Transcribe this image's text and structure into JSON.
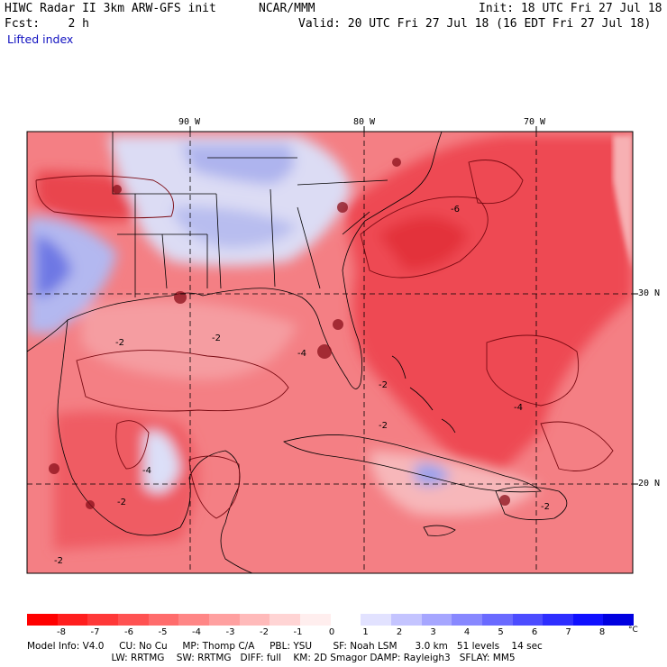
{
  "header": {
    "model_title": "HIWC Radar II 3km ARW-GFS init",
    "org": "NCAR/MMM",
    "init": "Init: 18 UTC Fri 27 Jul 18",
    "forecast": "Fcst:    2 h",
    "valid": "Valid: 20 UTC Fri 27 Jul 18 (16 EDT Fri 27 Jul 18)",
    "field": "Lifted index"
  },
  "map": {
    "lon_labels": [
      "90 W",
      "80 W",
      "70 W"
    ],
    "lat_labels": [
      "30 N",
      "20 N"
    ],
    "contour_labels": [
      "-2",
      "-2",
      "-4",
      "-2",
      "-6",
      "-2",
      "-4",
      "-2",
      "-4",
      "-2",
      "-2"
    ],
    "colors": {
      "neg_strong": "#e8303a",
      "neg_mid": "#f06a70",
      "neg_light": "#f7a6aa",
      "neutral": "#fbe4e6",
      "pos_light": "#c9cdf3",
      "pos_mid": "#8f98ec",
      "grid": "#000000"
    }
  },
  "colorbar": {
    "ticks": [
      "-8",
      "-7",
      "-6",
      "-5",
      "-4",
      "-3",
      "-2",
      "-1",
      "0",
      "1",
      "2",
      "3",
      "4",
      "5",
      "6",
      "7",
      "8"
    ],
    "unit": "°C",
    "colors": [
      "#ff0000",
      "#ff1e1e",
      "#ff3838",
      "#ff5252",
      "#ff6c6c",
      "#ff8686",
      "#ffa0a0",
      "#ffbaba",
      "#ffd4d4",
      "#ffeeee",
      "#ffffff",
      "#e2e2ff",
      "#c4c4ff",
      "#a6a6ff",
      "#8888ff",
      "#6a6aff",
      "#4c4cff",
      "#2e2eff",
      "#1010ff",
      "#0000e0"
    ]
  },
  "footer": {
    "line1": "Model Info: V4.0     CU: No Cu     MP: Thomp C/A     PBL: YSU       SF: Noah LSM      3.0 km   51 levels    14 sec",
    "line2": "                            LW: RRTMG    SW: RRTMG   DIFF: full    KM: 2D Smagor DAMP: Rayleigh3   SFLAY: MM5"
  }
}
